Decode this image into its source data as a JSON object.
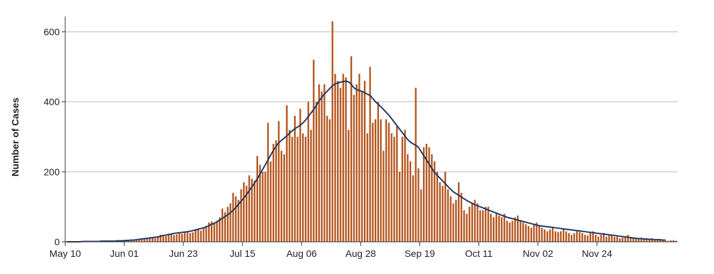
{
  "chart_data": {
    "type": "bar",
    "title": "",
    "xlabel": "",
    "ylabel": "Number of Cases",
    "x_start": "May 10",
    "x_ticks": [
      "May 10",
      "Jun 01",
      "Jun 23",
      "Jul 15",
      "Aug 06",
      "Aug 28",
      "Sep 19",
      "Oct 11",
      "Nov 02",
      "Nov 24"
    ],
    "y_ticks": [
      "0",
      "200",
      "400",
      "600"
    ],
    "ylim": [
      0,
      640
    ],
    "grid": true,
    "legend": "none",
    "colors": {
      "bars": "#b5561e",
      "line": "#1f3864",
      "grid": "#bbbbbb",
      "axis": "#333333"
    },
    "series": [
      {
        "kind": "bar",
        "values": [
          0,
          0,
          0,
          0,
          0,
          0,
          1,
          0,
          1,
          2,
          0,
          1,
          1,
          2,
          1,
          2,
          1,
          1,
          2,
          3,
          2,
          3,
          3,
          4,
          5,
          4,
          6,
          7,
          8,
          9,
          8,
          10,
          12,
          10,
          15,
          20,
          18,
          16,
          22,
          24,
          19,
          21,
          25,
          23,
          28,
          30,
          25,
          27,
          33,
          35,
          32,
          40,
          45,
          55,
          58,
          52,
          60,
          70,
          95,
          85,
          100,
          110,
          140,
          130,
          120,
          150,
          170,
          160,
          190,
          180,
          175,
          245,
          220,
          200,
          200,
          340,
          230,
          280,
          290,
          345,
          260,
          250,
          390,
          320,
          300,
          360,
          300,
          380,
          310,
          300,
          400,
          320,
          520,
          400,
          450,
          430,
          450,
          360,
          350,
          630,
          480,
          460,
          440,
          480,
          470,
          320,
          530,
          420,
          450,
          480,
          430,
          460,
          310,
          500,
          340,
          350,
          400,
          350,
          260,
          350,
          340,
          310,
          300,
          330,
          200,
          300,
          320,
          250,
          230,
          190,
          440,
          210,
          150,
          270,
          280,
          270,
          250,
          230,
          200,
          170,
          160,
          200,
          150,
          130,
          110,
          120,
          170,
          140,
          90,
          80,
          100,
          110,
          120,
          110,
          90,
          90,
          100,
          100,
          80,
          70,
          80,
          75,
          70,
          80,
          60,
          55,
          60,
          70,
          75,
          60,
          55,
          50,
          45,
          40,
          50,
          55,
          45,
          40,
          35,
          30,
          35,
          40,
          30,
          28,
          30,
          35,
          30,
          25,
          20,
          25,
          30,
          28,
          25,
          20,
          18,
          25,
          30,
          20,
          15,
          20,
          25,
          15,
          18,
          20,
          14,
          15,
          10,
          12,
          15,
          20,
          12,
          10,
          8,
          10,
          12,
          10,
          8,
          6,
          10,
          8,
          5,
          6,
          5,
          4,
          3,
          4,
          5,
          3
        ]
      },
      {
        "kind": "line",
        "values": [
          0,
          0,
          0,
          0,
          0,
          0,
          1,
          1,
          1,
          1,
          1,
          1,
          1,
          2,
          2,
          2,
          2,
          2,
          2,
          3,
          3,
          3,
          4,
          4,
          5,
          5,
          6,
          7,
          8,
          9,
          10,
          11,
          12,
          13,
          14,
          16,
          18,
          19,
          21,
          22,
          24,
          25,
          26,
          27,
          28,
          29,
          30,
          32,
          34,
          36,
          38,
          40,
          43,
          46,
          50,
          53,
          57,
          62,
          67,
          72,
          77,
          83,
          90,
          98,
          107,
          116,
          125,
          135,
          146,
          157,
          168,
          180,
          193,
          207,
          220,
          234,
          248,
          261,
          273,
          283,
          290,
          296,
          303,
          310,
          317,
          323,
          328,
          333,
          340,
          348,
          358,
          368,
          378,
          390,
          402,
          413,
          422,
          430,
          438,
          446,
          451,
          454,
          456,
          458,
          459,
          457,
          450,
          440,
          435,
          432,
          430,
          426,
          422,
          418,
          410,
          400,
          393,
          386,
          378,
          370,
          362,
          352,
          342,
          332,
          322,
          312,
          302,
          292,
          285,
          280,
          276,
          270,
          258,
          246,
          234,
          222,
          210,
          198,
          190,
          182,
          174,
          166,
          158,
          150,
          143,
          138,
          133,
          128,
          123,
          118,
          114,
          110,
          106,
          103,
          100,
          97,
          94,
          91,
          88,
          85,
          82,
          79,
          76,
          73,
          70,
          68,
          66,
          64,
          62,
          60,
          58,
          56,
          54,
          52,
          50,
          48,
          46,
          45,
          44,
          43,
          42,
          41,
          40,
          39,
          38,
          37,
          36,
          35,
          34,
          33,
          32,
          31,
          30,
          29,
          28,
          27,
          26,
          25,
          24,
          23,
          22,
          21,
          20,
          19,
          18,
          17,
          16,
          15,
          14,
          13,
          12,
          11,
          10,
          9,
          9,
          8,
          8,
          7,
          7,
          6,
          6,
          6,
          5,
          5
        ]
      }
    ]
  }
}
